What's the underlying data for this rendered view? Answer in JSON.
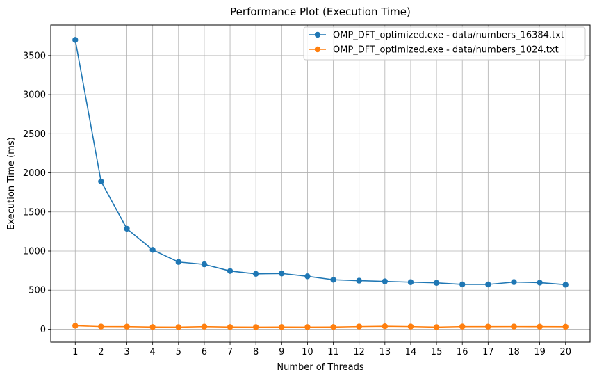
{
  "chart_data": {
    "type": "line",
    "title": "Performance Plot (Execution Time)",
    "xlabel": "Number of Threads",
    "ylabel": "Execution Time (ms)",
    "x": [
      1,
      2,
      3,
      4,
      5,
      6,
      7,
      8,
      9,
      10,
      11,
      12,
      13,
      14,
      15,
      16,
      17,
      18,
      19,
      20
    ],
    "xticks": [
      "1",
      "2",
      "3",
      "4",
      "5",
      "6",
      "7",
      "8",
      "9",
      "10",
      "11",
      "12",
      "13",
      "14",
      "15",
      "16",
      "17",
      "18",
      "19",
      "20"
    ],
    "yticks": [
      0,
      500,
      1000,
      1500,
      2000,
      2500,
      3000,
      3500
    ],
    "ylim": [
      -165,
      3890
    ],
    "xlim": [
      0.05,
      20.95
    ],
    "grid": true,
    "legend_position": "top-right",
    "series": [
      {
        "name": "OMP_DFT_optimized.exe - data/numbers_16384.txt",
        "color": "#1f77b4",
        "values": [
          3700,
          1890,
          1285,
          1015,
          860,
          830,
          745,
          708,
          713,
          677,
          633,
          621,
          612,
          602,
          593,
          574,
          573,
          603,
          596,
          570
        ]
      },
      {
        "name": "OMP_DFT_optimized.exe - data/numbers_1024.txt",
        "color": "#ff7f0e",
        "values": [
          45,
          34,
          33,
          28,
          27,
          33,
          28,
          27,
          28,
          27,
          28,
          34,
          38,
          34,
          27,
          34,
          33,
          34,
          33,
          32
        ]
      }
    ]
  }
}
